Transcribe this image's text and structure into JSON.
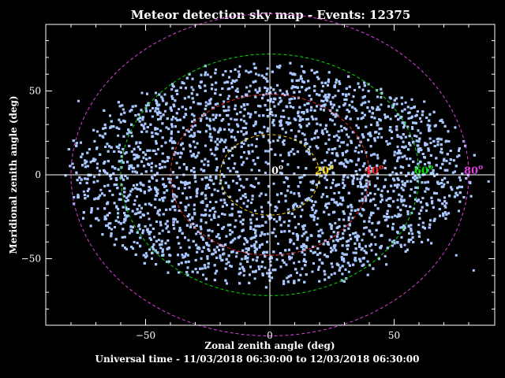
{
  "chart_data": {
    "type": "scatter",
    "title": "Meteor detection sky map - Events: 12375",
    "xlabel": "Zonal zenith angle (deg)",
    "ylabel": "Meridional zenith angle (deg)",
    "subtitle": "Universal time - 11/03/2018 06:30:00 to 12/03/2018 06:30:00",
    "xlim": [
      -90,
      90
    ],
    "ylim": [
      -90,
      90
    ],
    "xticks": [
      -50,
      0,
      50
    ],
    "yticks": [
      -50,
      0,
      50
    ],
    "grid": false,
    "point_color": "#a8c8ff",
    "background_color": "#000000",
    "foreground_color": "#ffffff",
    "point_density": {
      "description_free": true,
      "inner_hole_radius_deg": 20,
      "outer_extent_x_deg": 80,
      "outer_extent_y_deg": 65
    },
    "zenith_rings": [
      {
        "label": "0",
        "unit": "o",
        "radius_deg": 0,
        "color": "#ffffff"
      },
      {
        "label": "20",
        "unit": "o",
        "radius_deg": 20,
        "color": "#ffd700"
      },
      {
        "label": "40",
        "unit": "o",
        "radius_deg": 40,
        "color": "#ff3030"
      },
      {
        "label": "60",
        "unit": "o",
        "radius_deg": 60,
        "color": "#00e000"
      },
      {
        "label": "80",
        "unit": "o",
        "radius_deg": 80,
        "color": "#e040e0"
      }
    ]
  }
}
